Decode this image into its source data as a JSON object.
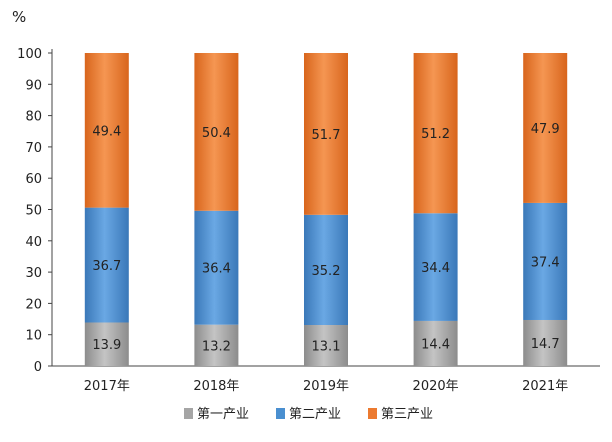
{
  "chart_data": {
    "type": "bar",
    "stacked": true,
    "unit": "%",
    "categories": [
      "2017年",
      "2018年",
      "2019年",
      "2020年",
      "2021年"
    ],
    "series": [
      {
        "name": "第一产业",
        "color": "#a5a5a5",
        "values": [
          13.9,
          13.2,
          13.1,
          14.4,
          14.7
        ]
      },
      {
        "name": "第二产业",
        "color": "#4a8fd0",
        "values": [
          36.7,
          36.4,
          35.2,
          34.4,
          37.4
        ]
      },
      {
        "name": "第三产业",
        "color": "#ec7a30",
        "values": [
          49.4,
          50.4,
          51.7,
          51.2,
          47.9
        ]
      }
    ],
    "yticks": [
      "0",
      "10",
      "20",
      "30",
      "40",
      "50",
      "60",
      "70",
      "80",
      "90",
      "100"
    ],
    "ylim": [
      0,
      100
    ],
    "grid": false,
    "legend": "bottom"
  }
}
